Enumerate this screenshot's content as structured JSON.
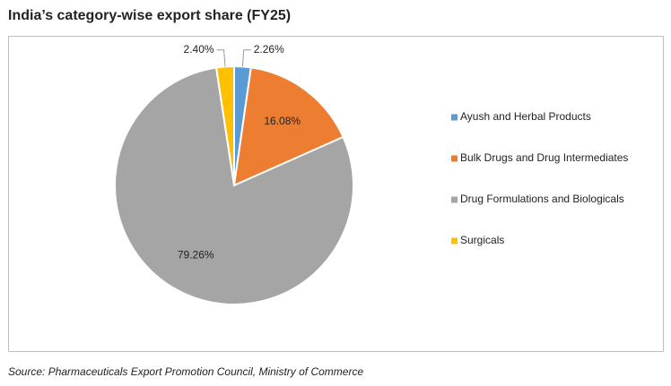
{
  "chart_data": {
    "type": "pie",
    "title": "India’s category-wise export share (FY25)",
    "categories": [
      "Ayush and Herbal Products",
      "Bulk Drugs and Drug Intermediates",
      "Drug Formulations and Biologicals",
      "Surgicals"
    ],
    "values": [
      2.26,
      16.08,
      79.26,
      2.4
    ],
    "value_labels": [
      "2.26%",
      "16.08%",
      "79.26%",
      "2.40%"
    ],
    "colors": [
      "#5b9bd5",
      "#ed7d31",
      "#a5a5a5",
      "#ffc000"
    ],
    "legend": "right",
    "source": "Source: Pharmaceuticals Export Promotion Council, Ministry of Commerce"
  }
}
